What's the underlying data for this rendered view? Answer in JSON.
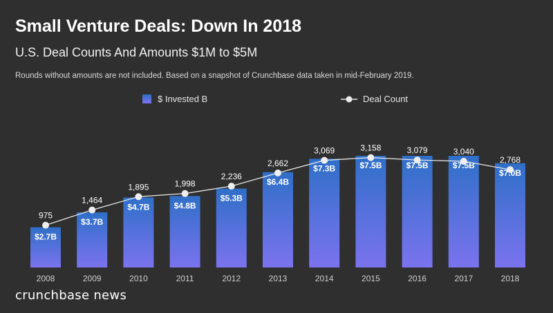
{
  "title": "Small Venture Deals: Down In 2018",
  "subtitle": "U.S. Deal Counts And Amounts $1M to $5M",
  "note": "Rounds without amounts are not included. Based on a snapshot of Crunchbase data taken in mid-February 2019.",
  "brand": "crunchbase news",
  "colors": {
    "background": "#2f2f2f",
    "bar_top": "#2f6fc8",
    "bar_bottom": "#7b73ee",
    "line": "#e6e6e6",
    "marker": "#eeeeee"
  },
  "chart_data": {
    "type": "bar",
    "categories": [
      "2008",
      "2009",
      "2010",
      "2011",
      "2012",
      "2013",
      "2014",
      "2015",
      "2016",
      "2017",
      "2018"
    ],
    "series": [
      {
        "name": "$ Invested B",
        "type": "bar",
        "values": [
          2.7,
          3.7,
          4.7,
          4.8,
          5.3,
          6.4,
          7.3,
          7.5,
          7.5,
          7.5,
          7.0
        ],
        "labels": [
          "$2.7B",
          "$3.7B",
          "$4.7B",
          "$4.8B",
          "$5.3B",
          "$6.4B",
          "$7.3B",
          "$7.5B",
          "$7.5B",
          "$7.5B",
          "$7.0B"
        ]
      },
      {
        "name": "Deal Count",
        "type": "line",
        "values": [
          975,
          1464,
          1895,
          1998,
          2236,
          2662,
          3069,
          3158,
          3079,
          3040,
          2768
        ],
        "labels": [
          "975",
          "1,464",
          "1,895",
          "1,998",
          "2,236",
          "2,662",
          "3,069",
          "3,158",
          "3,079",
          "3,040",
          "2,768"
        ]
      }
    ],
    "legend": "top",
    "grid": false
  }
}
